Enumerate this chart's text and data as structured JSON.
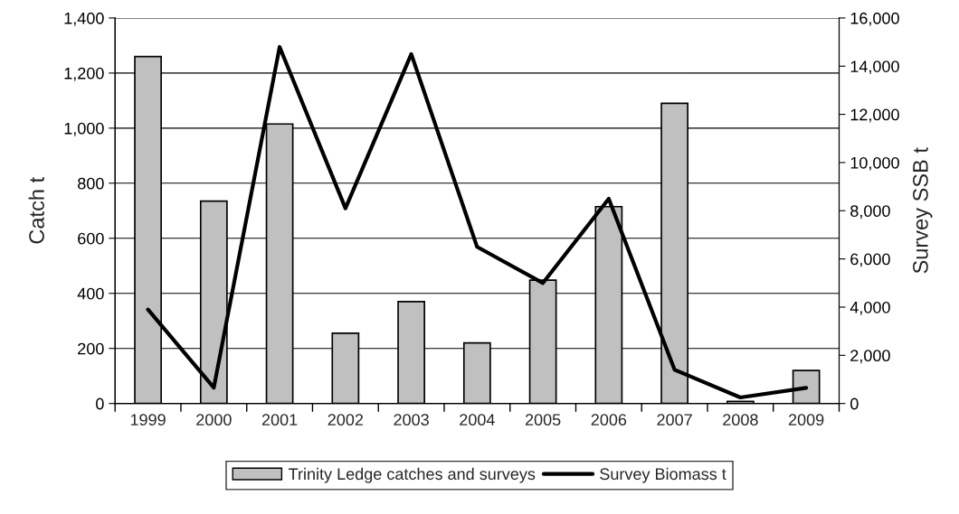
{
  "chart_data": {
    "type": "bar",
    "categories": [
      "1999",
      "2000",
      "2001",
      "2002",
      "2003",
      "2004",
      "2005",
      "2006",
      "2007",
      "2008",
      "2009"
    ],
    "ylabel": "Catch t",
    "y2label": "Survey SSB t",
    "series": [
      {
        "name": "Trinity Ledge catches and surveys",
        "color": "#c0c0c0",
        "values": [
          1260,
          735,
          1015,
          255,
          370,
          220,
          448,
          715,
          1090,
          8,
          120
        ]
      },
      {
        "name": "Survey Biomass t",
        "type": "line",
        "axis": "y2",
        "color": "#000000",
        "values": [
          3900,
          660,
          14800,
          8100,
          14500,
          6500,
          5000,
          8500,
          1400,
          250,
          650
        ]
      }
    ],
    "ylim": [
      0,
      1400
    ],
    "yticks": [
      {
        "value": 0,
        "label": "0"
      },
      {
        "value": 200,
        "label": "200"
      },
      {
        "value": 400,
        "label": "400"
      },
      {
        "value": 600,
        "label": "600"
      },
      {
        "value": 800,
        "label": "800"
      },
      {
        "value": 1000,
        "label": "1,000"
      },
      {
        "value": 1200,
        "label": "1,200"
      },
      {
        "value": 1400,
        "label": "1,400"
      }
    ],
    "y2lim": [
      0,
      16000
    ],
    "y2ticks": [
      {
        "value": 0,
        "label": "0"
      },
      {
        "value": 2000,
        "label": "2,000"
      },
      {
        "value": 4000,
        "label": "4,000"
      },
      {
        "value": 6000,
        "label": "6,000"
      },
      {
        "value": 8000,
        "label": "8,000"
      },
      {
        "value": 10000,
        "label": "10,000"
      },
      {
        "value": 12000,
        "label": "12,000"
      },
      {
        "value": 14000,
        "label": "14,000"
      },
      {
        "value": 16000,
        "label": "16,000"
      }
    ],
    "grid": "y",
    "legend": "bottom"
  }
}
